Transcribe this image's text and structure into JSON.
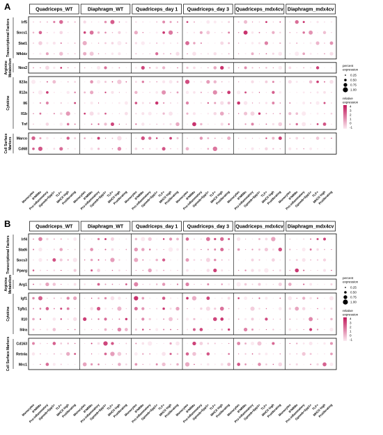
{
  "chart_data": [
    {
      "type": "dotplot",
      "panel": "A",
      "group_headers": [
        "Quadriceps_WT",
        "Diaphragm_WT",
        "Quadriceps_day 1",
        "Quadriceps_day 3",
        "Quadriceps_mdx4cv",
        "Diaphragm_mdx4cv"
      ],
      "cell_types": [
        "Monocytes",
        "IFNRMs",
        "Pro-inflammatory",
        "Gpnmb+Spp1+",
        "TLF+",
        "MHCII high",
        "Proliferating"
      ],
      "categories": [
        {
          "label": "Transcriptional Factors",
          "genes": [
            "Irf5",
            "Socs1",
            "Stat1",
            "Nfkbiz"
          ]
        },
        {
          "label": "Arginine Metabolism",
          "genes": [
            "Nos2"
          ]
        },
        {
          "label": "Cytokine",
          "genes": [
            "Il23a",
            "Il12a",
            "Il6",
            "Il1b",
            "Tnf"
          ]
        },
        {
          "label": "Cell Surface Markers",
          "genes": [
            "Marco",
            "Cd68"
          ]
        }
      ],
      "size_legend": {
        "title": "percent expression",
        "values": [
          "0.25",
          "0.50",
          "0.75",
          "1.00"
        ]
      },
      "color_legend": {
        "title": "relative expression",
        "ticks": [
          "4",
          "3",
          "2",
          "1",
          "0",
          "-1"
        ],
        "colors": [
          "#fbeaf1",
          "#c2185b"
        ]
      }
    },
    {
      "type": "dotplot",
      "panel": "B",
      "group_headers": [
        "Quadriceps_WT",
        "Diaphragm_WT",
        "Quadriceps_day 1",
        "Quadriceps_day 3",
        "Quadriceps_mdx4cv",
        "Diaphragm_mdx4cv"
      ],
      "cell_types": [
        "Monocytes",
        "IFNRMs",
        "Pro-inflammatory",
        "Gpnmb+Spp1+",
        "TLF+",
        "MHCII high",
        "Proliferating"
      ],
      "categories": [
        {
          "label": "Transcriptional Factors",
          "genes": [
            "Irf4",
            "Stat6",
            "Socs3",
            "Pparg"
          ]
        },
        {
          "label": "Arginine Metabolism",
          "genes": [
            "Arg1"
          ]
        },
        {
          "label": "Cytokine",
          "genes": [
            "Igf1",
            "Tgfb1",
            "Il10",
            "Il4ra"
          ]
        },
        {
          "label": "Cell Surface Markers",
          "genes": [
            "Cd163",
            "Retnla",
            "Mrc1"
          ]
        }
      ],
      "size_legend": {
        "title": "percent expression",
        "values": [
          "0.25",
          "0.50",
          "0.75",
          "1.00"
        ]
      },
      "color_legend": {
        "title": "relative expression",
        "ticks": [
          "4",
          "3",
          "2",
          "1",
          "0",
          "-1"
        ],
        "colors": [
          "#fbeaf1",
          "#c2185b"
        ]
      }
    }
  ]
}
